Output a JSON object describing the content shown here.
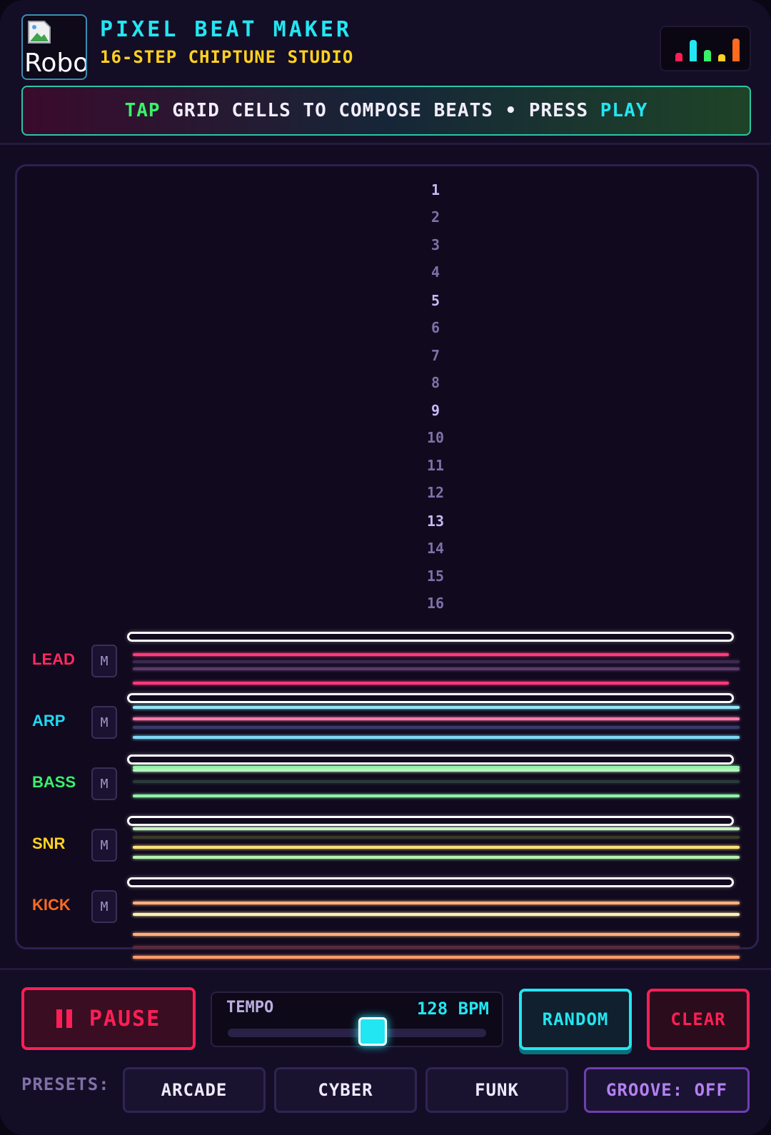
{
  "header": {
    "avatar_alt": "Robot",
    "title": "PIXEL BEAT MAKER",
    "subtitle": "16-STEP CHIPTUNE STUDIO",
    "eq_icon": "equalizer-icon",
    "eq_bar_colors": [
      "#ff1f55",
      "#22e6f2",
      "#38f26a",
      "#ffd21f",
      "#ff6a1f"
    ]
  },
  "banner": {
    "part1": "TAP",
    "part2": " GRID CELLS TO COMPOSE BEATS • PRESS ",
    "part3": "PLAY"
  },
  "sequencer": {
    "steps": [
      "1",
      "2",
      "3",
      "4",
      "5",
      "6",
      "7",
      "8",
      "9",
      "10",
      "11",
      "12",
      "13",
      "14",
      "15",
      "16"
    ],
    "tracks": [
      {
        "name": "LEAD",
        "mute": "M",
        "color": "#ff2a60"
      },
      {
        "name": "ARP",
        "mute": "M",
        "color": "#22d8f2"
      },
      {
        "name": "BASS",
        "mute": "M",
        "color": "#38f26a"
      },
      {
        "name": "SNR",
        "mute": "M",
        "color": "#ffd21f"
      },
      {
        "name": "KICK",
        "mute": "M",
        "color": "#ff6a1f"
      }
    ]
  },
  "controls": {
    "pause_label": "PAUSE",
    "tempo_label": "TEMPO",
    "tempo_value": "128 BPM",
    "tempo_level": 0.56,
    "random_label": "RANDOM",
    "clear_label": "CLEAR",
    "presets_label": "PRESETS:",
    "presets": [
      "ARCADE",
      "CYBER",
      "FUNK"
    ],
    "groove_label": "GROOVE: OFF"
  }
}
